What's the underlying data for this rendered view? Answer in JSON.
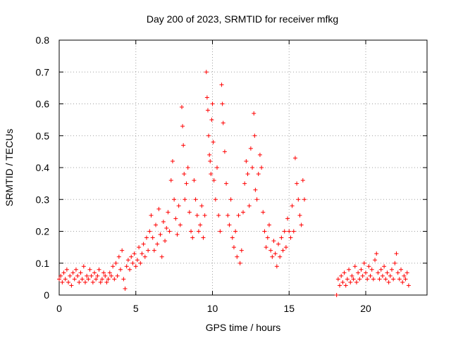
{
  "chart_data": {
    "type": "scatter",
    "title": "Day 200 of 2023, SRMTID for receiver mfkg",
    "xlabel": "GPS time / hours",
    "ylabel": "SRMTID / TECUs",
    "xlim": [
      0,
      24
    ],
    "ylim": [
      0,
      0.8
    ],
    "xticks": [
      0,
      5,
      10,
      15,
      20
    ],
    "yticks": [
      0,
      0.1,
      0.2,
      0.3,
      0.4,
      0.5,
      0.6,
      0.7,
      0.8
    ],
    "ytick_labels": [
      "0",
      "0.1",
      "0.2",
      "0.3",
      "0.4",
      "0.5",
      "0.6",
      "0.7",
      "0.8"
    ],
    "xtick_labels": [
      "0",
      "5",
      "10",
      "15",
      "20"
    ],
    "grid": true,
    "marker": "+",
    "color": "#ff0000",
    "series": [
      {
        "name": "SRMTID",
        "points": [
          [
            0.0,
            0.05
          ],
          [
            0.1,
            0.06
          ],
          [
            0.2,
            0.04
          ],
          [
            0.3,
            0.07
          ],
          [
            0.4,
            0.05
          ],
          [
            0.5,
            0.08
          ],
          [
            0.6,
            0.04
          ],
          [
            0.7,
            0.06
          ],
          [
            0.8,
            0.03
          ],
          [
            0.9,
            0.07
          ],
          [
            1.0,
            0.05
          ],
          [
            1.1,
            0.08
          ],
          [
            1.2,
            0.06
          ],
          [
            1.3,
            0.04
          ],
          [
            1.4,
            0.07
          ],
          [
            1.5,
            0.05
          ],
          [
            1.6,
            0.09
          ],
          [
            1.7,
            0.04
          ],
          [
            1.8,
            0.06
          ],
          [
            1.9,
            0.05
          ],
          [
            2.0,
            0.08
          ],
          [
            2.1,
            0.06
          ],
          [
            2.2,
            0.04
          ],
          [
            2.3,
            0.07
          ],
          [
            2.4,
            0.05
          ],
          [
            2.5,
            0.06
          ],
          [
            2.6,
            0.08
          ],
          [
            2.7,
            0.04
          ],
          [
            2.8,
            0.05
          ],
          [
            2.9,
            0.07
          ],
          [
            3.0,
            0.06
          ],
          [
            3.1,
            0.04
          ],
          [
            3.2,
            0.05
          ],
          [
            3.3,
            0.07
          ],
          [
            3.4,
            0.06
          ],
          [
            3.5,
            0.09
          ],
          [
            3.6,
            0.05
          ],
          [
            3.7,
            0.1
          ],
          [
            3.8,
            0.06
          ],
          [
            3.9,
            0.12
          ],
          [
            4.0,
            0.08
          ],
          [
            4.1,
            0.14
          ],
          [
            4.2,
            0.05
          ],
          [
            4.3,
            0.02
          ],
          [
            4.4,
            0.09
          ],
          [
            4.5,
            0.11
          ],
          [
            4.6,
            0.08
          ],
          [
            4.7,
            0.12
          ],
          [
            4.8,
            0.1
          ],
          [
            4.9,
            0.13
          ],
          [
            5.0,
            0.09
          ],
          [
            5.1,
            0.11
          ],
          [
            5.2,
            0.15
          ],
          [
            5.3,
            0.1
          ],
          [
            5.4,
            0.13
          ],
          [
            5.5,
            0.16
          ],
          [
            5.6,
            0.12
          ],
          [
            5.7,
            0.18
          ],
          [
            5.8,
            0.14
          ],
          [
            5.9,
            0.2
          ],
          [
            6.0,
            0.25
          ],
          [
            6.1,
            0.18
          ],
          [
            6.2,
            0.14
          ],
          [
            6.3,
            0.22
          ],
          [
            6.4,
            0.16
          ],
          [
            6.5,
            0.27
          ],
          [
            6.6,
            0.19
          ],
          [
            6.7,
            0.12
          ],
          [
            6.8,
            0.23
          ],
          [
            6.9,
            0.17
          ],
          [
            7.0,
            0.21
          ],
          [
            7.1,
            0.26
          ],
          [
            7.2,
            0.2
          ],
          [
            7.3,
            0.36
          ],
          [
            7.4,
            0.42
          ],
          [
            7.5,
            0.3
          ],
          [
            7.6,
            0.24
          ],
          [
            7.7,
            0.19
          ],
          [
            7.8,
            0.28
          ],
          [
            7.9,
            0.22
          ],
          [
            8.0,
            0.59
          ],
          [
            8.05,
            0.53
          ],
          [
            8.1,
            0.47
          ],
          [
            8.15,
            0.38
          ],
          [
            8.2,
            0.3
          ],
          [
            8.3,
            0.35
          ],
          [
            8.4,
            0.4
          ],
          [
            8.5,
            0.26
          ],
          [
            8.6,
            0.2
          ],
          [
            8.7,
            0.18
          ],
          [
            8.8,
            0.36
          ],
          [
            8.9,
            0.3
          ],
          [
            9.0,
            0.25
          ],
          [
            9.1,
            0.2
          ],
          [
            9.2,
            0.22
          ],
          [
            9.3,
            0.28
          ],
          [
            9.4,
            0.18
          ],
          [
            9.5,
            0.25
          ],
          [
            9.6,
            0.7
          ],
          [
            9.65,
            0.62
          ],
          [
            9.7,
            0.58
          ],
          [
            9.75,
            0.5
          ],
          [
            9.8,
            0.44
          ],
          [
            9.85,
            0.42
          ],
          [
            9.9,
            0.38
          ],
          [
            9.95,
            0.55
          ],
          [
            10.0,
            0.6
          ],
          [
            10.05,
            0.48
          ],
          [
            10.1,
            0.36
          ],
          [
            10.2,
            0.3
          ],
          [
            10.3,
            0.4
          ],
          [
            10.4,
            0.25
          ],
          [
            10.5,
            0.2
          ],
          [
            10.6,
            0.66
          ],
          [
            10.65,
            0.6
          ],
          [
            10.7,
            0.54
          ],
          [
            10.8,
            0.45
          ],
          [
            10.9,
            0.35
          ],
          [
            11.0,
            0.25
          ],
          [
            11.1,
            0.22
          ],
          [
            11.2,
            0.3
          ],
          [
            11.3,
            0.18
          ],
          [
            11.4,
            0.15
          ],
          [
            11.5,
            0.2
          ],
          [
            11.6,
            0.12
          ],
          [
            11.7,
            0.25
          ],
          [
            11.8,
            0.1
          ],
          [
            11.9,
            0.14
          ],
          [
            12.0,
            0.26
          ],
          [
            12.1,
            0.35
          ],
          [
            12.2,
            0.42
          ],
          [
            12.3,
            0.38
          ],
          [
            12.4,
            0.28
          ],
          [
            12.5,
            0.46
          ],
          [
            12.6,
            0.4
          ],
          [
            12.7,
            0.57
          ],
          [
            12.75,
            0.5
          ],
          [
            12.8,
            0.33
          ],
          [
            12.9,
            0.3
          ],
          [
            13.0,
            0.38
          ],
          [
            13.1,
            0.44
          ],
          [
            13.2,
            0.4
          ],
          [
            13.3,
            0.26
          ],
          [
            13.4,
            0.2
          ],
          [
            13.5,
            0.15
          ],
          [
            13.6,
            0.18
          ],
          [
            13.7,
            0.22
          ],
          [
            13.8,
            0.14
          ],
          [
            13.9,
            0.12
          ],
          [
            14.0,
            0.17
          ],
          [
            14.1,
            0.13
          ],
          [
            14.2,
            0.09
          ],
          [
            14.3,
            0.16
          ],
          [
            14.4,
            0.12
          ],
          [
            14.5,
            0.18
          ],
          [
            14.6,
            0.14
          ],
          [
            14.7,
            0.2
          ],
          [
            14.8,
            0.15
          ],
          [
            14.9,
            0.24
          ],
          [
            15.0,
            0.2
          ],
          [
            15.1,
            0.18
          ],
          [
            15.2,
            0.28
          ],
          [
            15.3,
            0.2
          ],
          [
            15.4,
            0.43
          ],
          [
            15.5,
            0.35
          ],
          [
            15.6,
            0.3
          ],
          [
            15.7,
            0.25
          ],
          [
            15.8,
            0.22
          ],
          [
            15.9,
            0.36
          ],
          [
            16.0,
            0.3
          ],
          [
            18.1,
            0.0
          ],
          [
            18.2,
            0.05
          ],
          [
            18.3,
            0.03
          ],
          [
            18.4,
            0.06
          ],
          [
            18.5,
            0.04
          ],
          [
            18.6,
            0.07
          ],
          [
            18.7,
            0.03
          ],
          [
            18.8,
            0.05
          ],
          [
            18.9,
            0.08
          ],
          [
            19.0,
            0.04
          ],
          [
            19.1,
            0.06
          ],
          [
            19.2,
            0.05
          ],
          [
            19.3,
            0.09
          ],
          [
            19.4,
            0.04
          ],
          [
            19.5,
            0.07
          ],
          [
            19.6,
            0.05
          ],
          [
            19.7,
            0.08
          ],
          [
            19.8,
            0.06
          ],
          [
            19.9,
            0.1
          ],
          [
            20.0,
            0.07
          ],
          [
            20.1,
            0.05
          ],
          [
            20.2,
            0.09
          ],
          [
            20.3,
            0.06
          ],
          [
            20.4,
            0.08
          ],
          [
            20.5,
            0.05
          ],
          [
            20.6,
            0.11
          ],
          [
            20.7,
            0.13
          ],
          [
            20.8,
            0.07
          ],
          [
            20.9,
            0.05
          ],
          [
            21.0,
            0.08
          ],
          [
            21.1,
            0.06
          ],
          [
            21.2,
            0.09
          ],
          [
            21.3,
            0.05
          ],
          [
            21.4,
            0.07
          ],
          [
            21.5,
            0.04
          ],
          [
            21.6,
            0.06
          ],
          [
            21.7,
            0.08
          ],
          [
            21.8,
            0.05
          ],
          [
            21.9,
            0.1
          ],
          [
            22.0,
            0.13
          ],
          [
            22.1,
            0.07
          ],
          [
            22.2,
            0.05
          ],
          [
            22.3,
            0.08
          ],
          [
            22.4,
            0.04
          ],
          [
            22.5,
            0.06
          ],
          [
            22.6,
            0.05
          ],
          [
            22.7,
            0.07
          ],
          [
            22.8,
            0.03
          ]
        ]
      }
    ]
  }
}
